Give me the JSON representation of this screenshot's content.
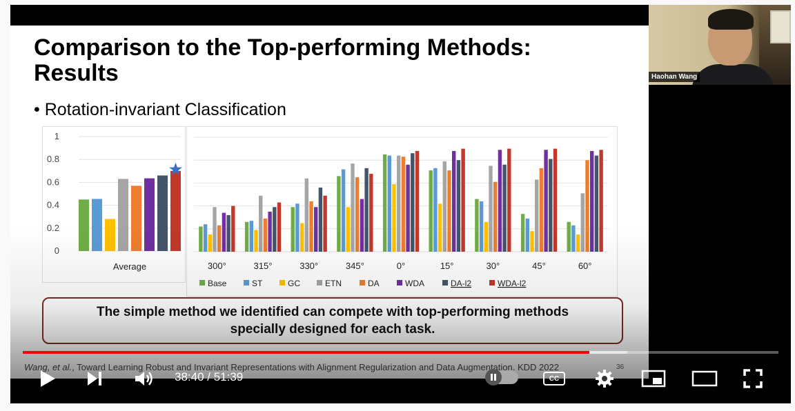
{
  "slide": {
    "title_line1": "Comparison to the Top-performing Methods:",
    "title_line2": "Results",
    "bullet": "• Rotation-invariant Classification",
    "callout_line1": "The simple method we identified can compete with top-performing methods",
    "callout_line2": "specially designed for each task.",
    "citation_authors": "Wang, et al.",
    "citation_rest": ", Toward Learning Robust and Invariant Representations with Alignment Regularization and Data Augmentation. KDD 2022",
    "slide_number": "36"
  },
  "webcam": {
    "name": "Haohan Wang"
  },
  "player": {
    "current_time": "38:40",
    "separator": " / ",
    "duration": "51:39",
    "progress_fraction": 0.75,
    "buffer_fraction": 0.8,
    "cc_label": "CC",
    "icons": [
      "play-icon",
      "next-icon",
      "volume-icon",
      "autoplay-toggle-icon",
      "captions-icon",
      "settings-icon",
      "miniplayer-icon",
      "theater-icon",
      "fullscreen-icon"
    ]
  },
  "colors": {
    "Base": "#70ad47",
    "ST": "#5b9bd5",
    "GC": "#ffc000",
    "ETN": "#a5a5a5",
    "DA": "#ed7d31",
    "WDA": "#7030a0",
    "DA-l2": "#44546a",
    "WDA-l2": "#c0392b",
    "progress": "#ff0000",
    "callout_border": "#7b2b22"
  },
  "chart_data": [
    {
      "type": "bar",
      "categories": [
        "Average"
      ],
      "series": [
        {
          "name": "Base",
          "values": [
            0.45
          ]
        },
        {
          "name": "ST",
          "values": [
            0.455
          ]
        },
        {
          "name": "GC",
          "values": [
            0.28
          ]
        },
        {
          "name": "ETN",
          "values": [
            0.63
          ]
        },
        {
          "name": "DA",
          "values": [
            0.57
          ]
        },
        {
          "name": "WDA",
          "values": [
            0.635
          ]
        },
        {
          "name": "DA-l2",
          "values": [
            0.66
          ]
        },
        {
          "name": "WDA-l2",
          "values": [
            0.7
          ]
        }
      ],
      "yticks": [
        "0",
        "0.2",
        "0.4",
        "0.6",
        "0.8",
        "1"
      ],
      "ylim": [
        0,
        1
      ],
      "grid": true,
      "annotation": "star above WDA-l2"
    },
    {
      "type": "bar",
      "categories": [
        "300°",
        "315°",
        "330°",
        "345°",
        "0°",
        "15°",
        "30°",
        "45°",
        "60°"
      ],
      "series": [
        {
          "name": "Base",
          "values": [
            0.22,
            0.26,
            0.39,
            0.66,
            0.85,
            0.71,
            0.46,
            0.33,
            0.26
          ]
        },
        {
          "name": "ST",
          "values": [
            0.24,
            0.27,
            0.42,
            0.72,
            0.84,
            0.73,
            0.44,
            0.29,
            0.23
          ]
        },
        {
          "name": "GC",
          "values": [
            0.15,
            0.19,
            0.25,
            0.39,
            0.59,
            0.42,
            0.26,
            0.18,
            0.15
          ]
        },
        {
          "name": "ETN",
          "values": [
            0.39,
            0.49,
            0.64,
            0.77,
            0.84,
            0.79,
            0.75,
            0.63,
            0.51
          ]
        },
        {
          "name": "DA",
          "values": [
            0.23,
            0.29,
            0.44,
            0.65,
            0.83,
            0.71,
            0.61,
            0.73,
            0.8
          ]
        },
        {
          "name": "WDA",
          "values": [
            0.34,
            0.35,
            0.39,
            0.46,
            0.76,
            0.88,
            0.89,
            0.89,
            0.88
          ]
        },
        {
          "name": "DA-l2",
          "values": [
            0.32,
            0.39,
            0.56,
            0.73,
            0.86,
            0.8,
            0.76,
            0.81,
            0.84
          ]
        },
        {
          "name": "WDA-l2",
          "values": [
            0.4,
            0.43,
            0.49,
            0.68,
            0.88,
            0.9,
            0.9,
            0.9,
            0.89
          ]
        }
      ],
      "legend": [
        "Base",
        "ST",
        "GC",
        "ETN",
        "DA",
        "WDA",
        "DA-l2",
        "WDA-l2"
      ],
      "legend_position": "bottom",
      "ylim": [
        0,
        1
      ],
      "grid": true
    }
  ]
}
